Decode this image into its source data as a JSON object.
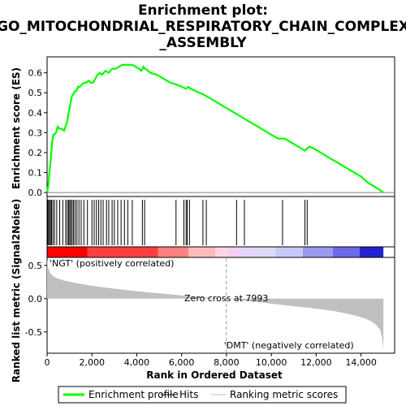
{
  "chart_data": {
    "type": "line",
    "title": "Enrichment plot:\nGO_MITOCHONDRIAL_RESPIRATORY_CHAIN_COMPLEX\n_ASSEMBLY",
    "title_lines": [
      "Enrichment plot:",
      "GO_MITOCHONDRIAL_RESPIRATORY_CHAIN_COMPLEX",
      "_ASSEMBLY"
    ],
    "es_panel": {
      "ylabel": "Enrichment score (ES)",
      "ylim": [
        -0.02,
        0.68
      ],
      "yticks": [
        0.0,
        0.1,
        0.2,
        0.3,
        0.4,
        0.5,
        0.6
      ],
      "ytick_labels": [
        "0.0",
        "0.1",
        "0.2",
        "0.3",
        "0.4",
        "0.5",
        "0.6"
      ],
      "line_color": "#00ff00",
      "series": [
        {
          "name": "Enrichment profile",
          "x": [
            0,
            60,
            110,
            160,
            220,
            280,
            330,
            400,
            470,
            550,
            650,
            760,
            850,
            900,
            950,
            1000,
            1050,
            1100,
            1150,
            1200,
            1260,
            1320,
            1380,
            1450,
            1550,
            1650,
            1750,
            1850,
            1950,
            2050,
            2150,
            2250,
            2350,
            2450,
            2600,
            2750,
            2900,
            3050,
            3200,
            3350,
            3500,
            3650,
            3800,
            3950,
            4100,
            4200,
            4250,
            4300,
            4350,
            4400,
            4600,
            4900,
            5200,
            5500,
            5800,
            6000,
            6200,
            6300,
            6400,
            6600,
            6800,
            7000,
            7300,
            7600,
            7900,
            8200,
            8500,
            8800,
            9100,
            9400,
            9700,
            10000,
            10300,
            10600,
            10900,
            11200,
            11500,
            11600,
            11700,
            11900,
            12200,
            12500,
            12800,
            13100,
            13400,
            13700,
            14000,
            14300,
            14600,
            15000
          ],
          "y": [
            0.0,
            0.04,
            0.11,
            0.16,
            0.25,
            0.29,
            0.29,
            0.3,
            0.33,
            0.32,
            0.32,
            0.31,
            0.34,
            0.36,
            0.39,
            0.42,
            0.45,
            0.48,
            0.49,
            0.5,
            0.51,
            0.51,
            0.53,
            0.53,
            0.54,
            0.55,
            0.55,
            0.56,
            0.55,
            0.55,
            0.57,
            0.59,
            0.6,
            0.59,
            0.61,
            0.6,
            0.62,
            0.62,
            0.63,
            0.64,
            0.64,
            0.64,
            0.64,
            0.63,
            0.62,
            0.61,
            0.62,
            0.63,
            0.62,
            0.62,
            0.6,
            0.59,
            0.57,
            0.55,
            0.54,
            0.53,
            0.52,
            0.53,
            0.52,
            0.51,
            0.5,
            0.49,
            0.47,
            0.45,
            0.43,
            0.41,
            0.39,
            0.37,
            0.35,
            0.33,
            0.31,
            0.29,
            0.27,
            0.27,
            0.25,
            0.23,
            0.21,
            0.22,
            0.23,
            0.22,
            0.2,
            0.18,
            0.16,
            0.14,
            0.12,
            0.1,
            0.08,
            0.05,
            0.03,
            0.0
          ]
        }
      ]
    },
    "hits_panel": {
      "hit_positions": [
        20,
        60,
        110,
        150,
        200,
        260,
        330,
        430,
        560,
        700,
        830,
        900,
        960,
        1010,
        1060,
        1120,
        1180,
        1250,
        1330,
        1420,
        1520,
        1640,
        1800,
        2000,
        2100,
        2200,
        2300,
        2400,
        2500,
        2650,
        2750,
        2900,
        3000,
        3150,
        3300,
        3450,
        3600,
        3800,
        4250,
        4350,
        5750,
        6100,
        6200,
        6250,
        6350,
        6950,
        7100,
        8450,
        8800,
        10500,
        11500,
        11600
      ]
    },
    "metric_panel": {
      "ylabel": "Ranked list metric (Signal2Noise)",
      "ylim": [
        -0.82,
        0.62
      ],
      "yticks": [
        -0.5,
        0.0,
        0.5
      ],
      "ytick_labels": [
        "-0.5",
        "0.0",
        "0.5"
      ],
      "fill_color": "#c0c0c0",
      "positive_label": "'NGT' (positively correlated)",
      "negative_label": "'DMT' (negatively correlated)",
      "zero_cross_label": "Zero cross at 7993",
      "zero_cross": 7993,
      "curve": {
        "x": [
          0,
          20,
          60,
          150,
          300,
          500,
          800,
          1200,
          1700,
          2300,
          3000,
          3800,
          4600,
          5400,
          6200,
          7000,
          7993,
          8800,
          9600,
          10400,
          11200,
          12000,
          12700,
          13300,
          13800,
          14200,
          14500,
          14700,
          14850,
          14950,
          15000
        ],
        "y": [
          0.6,
          0.52,
          0.45,
          0.38,
          0.33,
          0.3,
          0.27,
          0.24,
          0.21,
          0.18,
          0.15,
          0.12,
          0.09,
          0.07,
          0.04,
          0.02,
          0.0,
          -0.03,
          -0.06,
          -0.09,
          -0.12,
          -0.15,
          -0.18,
          -0.22,
          -0.26,
          -0.3,
          -0.35,
          -0.4,
          -0.47,
          -0.6,
          -0.78
        ]
      }
    },
    "xaxis": {
      "xlabel": "Rank in Ordered Dataset",
      "xlim": [
        0,
        15500
      ],
      "xticks": [
        0,
        2000,
        4000,
        6000,
        8000,
        10000,
        12000,
        14000
      ],
      "xtick_labels": [
        "0",
        "2,000",
        "4,000",
        "6,000",
        "8,000",
        "10,000",
        "12,000",
        "14,000"
      ]
    },
    "legend": {
      "placement": "bottom",
      "entries": [
        {
          "label": "Enrichment profile",
          "color": "#00ff00"
        },
        {
          "label": "Hits",
          "color": "#000000"
        },
        {
          "label": "Ranking metric scores",
          "color": "#c0c0c0"
        }
      ]
    },
    "heat_bar": {
      "colors": [
        "#ff0000",
        "#ff3f3f",
        "#ff8080",
        "#ffbbbb",
        "#ffd5e8",
        "#f0d0f5",
        "#e0d8f8",
        "#c8c8f8",
        "#9a9aee",
        "#6a6aea",
        "#2222cc"
      ],
      "stops": [
        0,
        0.12,
        0.33,
        0.42,
        0.5,
        0.54,
        0.58,
        0.68,
        0.76,
        0.85,
        0.93,
        1.0
      ]
    }
  }
}
